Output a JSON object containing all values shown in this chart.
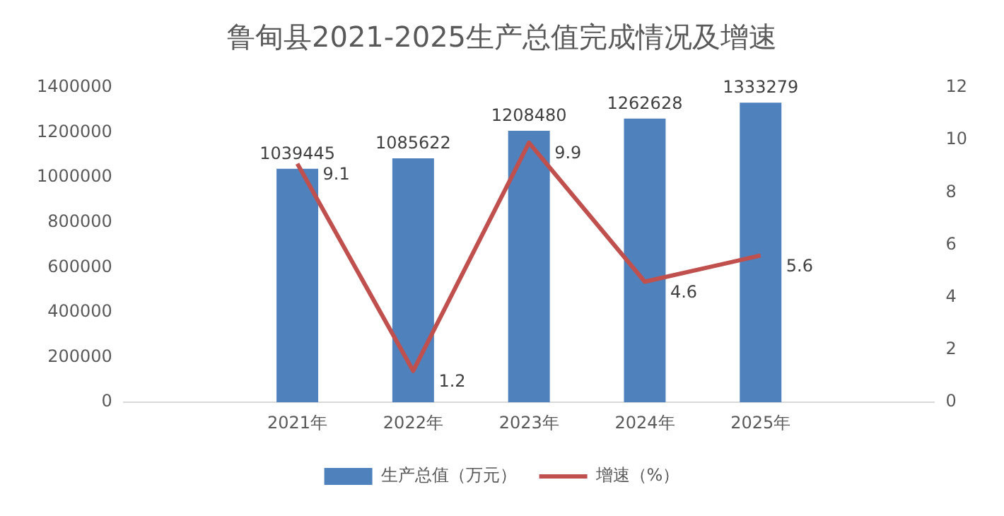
{
  "chart_data": {
    "type": "bar",
    "title": "鲁甸县2021-2025生产总值完成情况及增速",
    "categories": [
      null,
      "2021年",
      "2022年",
      "2023年",
      "2024年",
      "2025年",
      null
    ],
    "series": [
      {
        "name": "生产总值（万元）",
        "color": "#4f81bd",
        "values": [
          null,
          1039445,
          1085622,
          1208480,
          1262628,
          1333279,
          null
        ]
      },
      {
        "name": "增速（%）",
        "type": "line",
        "axis": "y2",
        "color": "#c0504d",
        "marker": "none",
        "values": [
          null,
          9.1,
          1.2,
          9.9,
          4.6,
          5.6,
          null
        ]
      }
    ],
    "ylim": [
      0,
      1400000
    ],
    "yticks": [
      0,
      200000,
      400000,
      600000,
      800000,
      1000000,
      1200000,
      1400000
    ],
    "y2lim": [
      0,
      12
    ],
    "y2ticks": [
      0,
      2,
      4,
      6,
      8,
      10,
      12
    ],
    "data_labels": true,
    "legend": "bottom"
  }
}
